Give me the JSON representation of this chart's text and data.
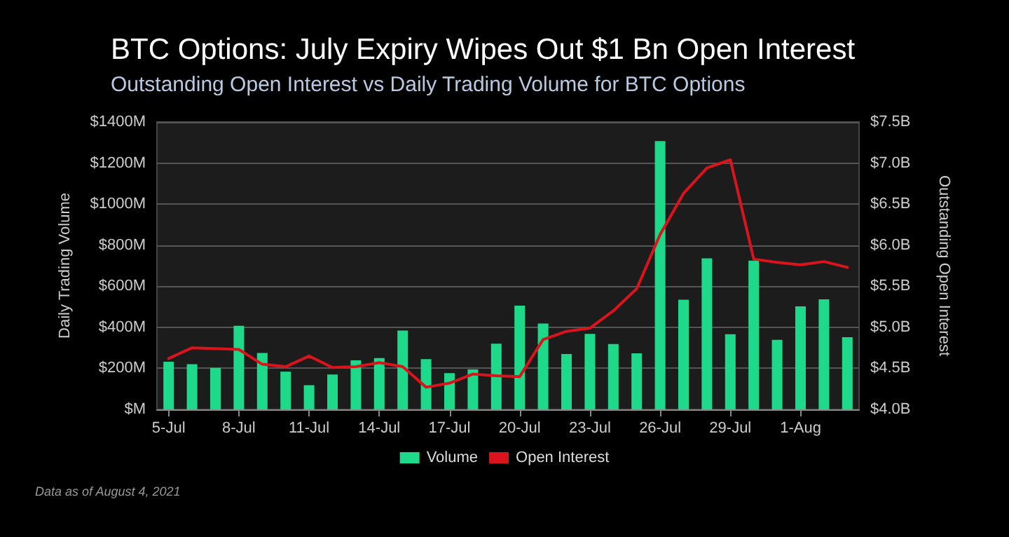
{
  "chart_data": {
    "type": "bar",
    "title": "BTC Options: July Expiry Wipes Out $1 Bn Open Interest",
    "subtitle": "Outstanding Open Interest vs Daily Trading Volume for BTC Options",
    "ylabel": "Daily Trading Volume",
    "y2label": "Outstanding Open Interest",
    "categories": [
      "5-Jul",
      null,
      null,
      "8-Jul",
      null,
      null,
      "11-Jul",
      null,
      null,
      "14-Jul",
      null,
      null,
      "17-Jul",
      null,
      null,
      "20-Jul",
      null,
      null,
      "23-Jul",
      null,
      null,
      "26-Jul",
      null,
      null,
      "29-Jul",
      null,
      null,
      "1-Aug",
      null,
      null
    ],
    "series": [
      {
        "name": "Volume",
        "color": "#1fd98a",
        "values": [
          232,
          220,
          202,
          407,
          275,
          184,
          118,
          170,
          239,
          250,
          384,
          245,
          177,
          195,
          320,
          505,
          418,
          270,
          368,
          318,
          273,
          1307,
          534,
          736,
          366,
          725,
          339,
          502,
          536,
          352
        ]
      },
      {
        "name": "Open Interest",
        "type": "line",
        "axis": "y2",
        "color": "#d9141c",
        "values": [
          4.62,
          4.75,
          4.74,
          4.73,
          4.55,
          4.52,
          4.65,
          4.51,
          4.52,
          4.57,
          4.52,
          4.27,
          4.32,
          4.43,
          4.41,
          4.4,
          4.85,
          4.95,
          4.99,
          5.2,
          5.47,
          6.13,
          6.63,
          6.94,
          7.04,
          5.83,
          5.79,
          5.76,
          5.8,
          5.73
        ]
      }
    ],
    "ylim": [
      0,
      1400
    ],
    "yticks": [
      {
        "value": 0,
        "label": "$M"
      },
      {
        "value": 200,
        "label": "$200M"
      },
      {
        "value": 400,
        "label": "$400M"
      },
      {
        "value": 600,
        "label": "$600M"
      },
      {
        "value": 800,
        "label": "$800M"
      },
      {
        "value": 1000,
        "label": "$1000M"
      },
      {
        "value": 1200,
        "label": "$1200M"
      },
      {
        "value": 1400,
        "label": "$1400M"
      }
    ],
    "y2lim": [
      4.0,
      7.5
    ],
    "y2ticks": [
      {
        "value": 4.0,
        "label": "$4.0B"
      },
      {
        "value": 4.5,
        "label": "$4.5B"
      },
      {
        "value": 5.0,
        "label": "$5.0B"
      },
      {
        "value": 5.5,
        "label": "$5.5B"
      },
      {
        "value": 6.0,
        "label": "$6.0B"
      },
      {
        "value": 6.5,
        "label": "$6.5B"
      },
      {
        "value": 7.0,
        "label": "$7.0B"
      },
      {
        "value": 7.5,
        "label": "$7.5B"
      }
    ],
    "grid": true,
    "legend": "bottom",
    "marker": "none",
    "line_style": "solid",
    "annotations": [
      "Data as of August 4, 2021"
    ]
  }
}
